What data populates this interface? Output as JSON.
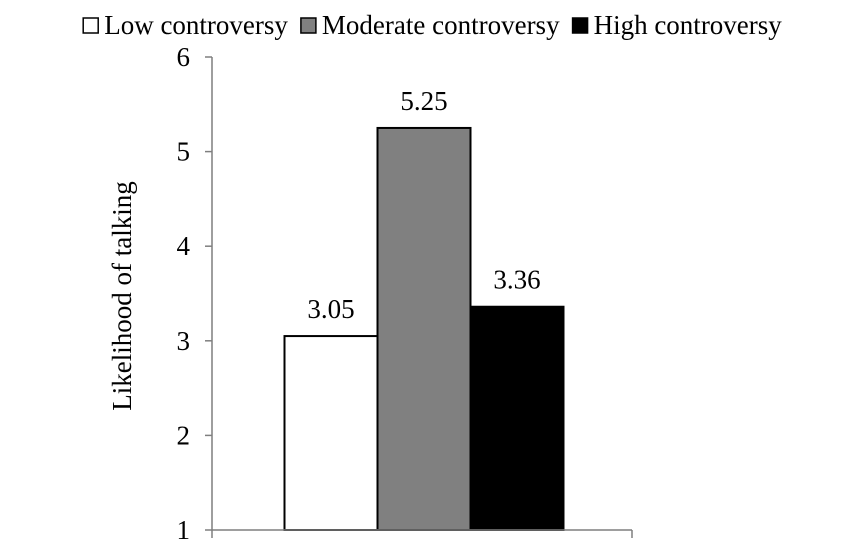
{
  "chart_data": {
    "type": "bar",
    "title": "",
    "xlabel": "",
    "ylabel": "Likelihood of talking",
    "ylim": [
      1,
      6
    ],
    "yticks": [
      1,
      2,
      3,
      4,
      5,
      6
    ],
    "grid": false,
    "legend_position": "top",
    "categories": [
      ""
    ],
    "series": [
      {
        "name": "Low controversy",
        "values": [
          3.05
        ],
        "color": "#ffffff",
        "value_label": "3.05"
      },
      {
        "name": "Moderate controversy",
        "values": [
          5.25
        ],
        "color": "#808080",
        "value_label": "5.25"
      },
      {
        "name": "High controversy",
        "values": [
          3.36
        ],
        "color": "#000000",
        "value_label": "3.36"
      }
    ]
  }
}
